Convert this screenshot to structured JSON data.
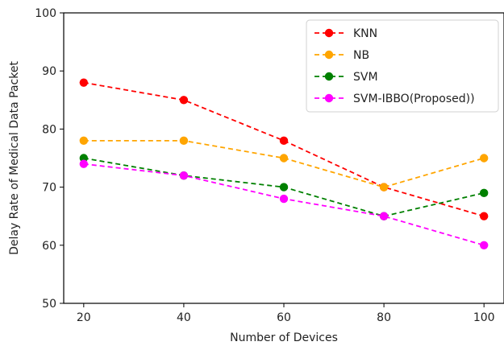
{
  "chart_data": {
    "type": "line",
    "x": [
      20,
      40,
      60,
      80,
      100
    ],
    "xticks": [
      20,
      40,
      60,
      80,
      100
    ],
    "yticks": [
      50,
      60,
      70,
      80,
      90,
      100
    ],
    "xlim": [
      16,
      104
    ],
    "ylim": [
      50,
      100
    ],
    "xlabel": "Number of Devices",
    "ylabel": "Delay Rate of Medical Data Packet",
    "grid": false,
    "legend_position": "top-right",
    "line_style": "dashed",
    "series": [
      {
        "name": "KNN",
        "color": "#ff0000",
        "values": [
          88,
          85,
          78,
          70,
          65
        ]
      },
      {
        "name": "NB",
        "color": "#ffa500",
        "values": [
          78,
          78,
          75,
          70,
          75
        ]
      },
      {
        "name": "SVM",
        "color": "#008000",
        "values": [
          75,
          72,
          70,
          65,
          69
        ]
      },
      {
        "name": "SVM-IBBO(Proposed))",
        "color": "#ff00ff",
        "values": [
          74,
          72,
          68,
          65,
          60
        ]
      }
    ]
  }
}
